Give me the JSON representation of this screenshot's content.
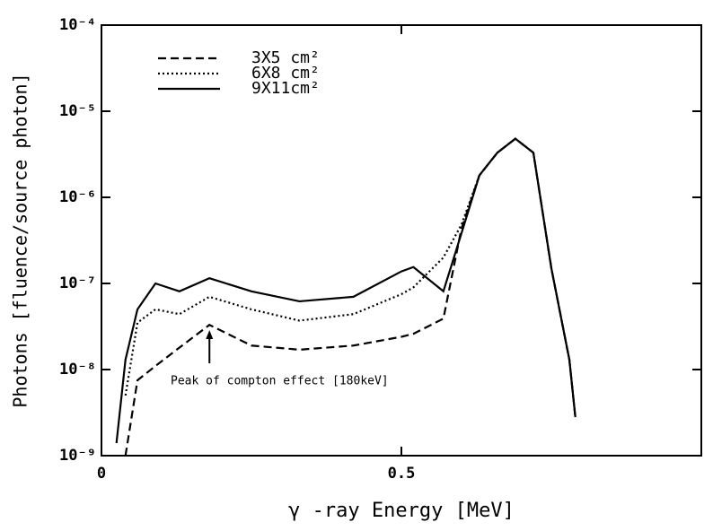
{
  "chart_data": {
    "type": "line",
    "ylabel": "Photons [fluence/source photon]",
    "xlabel": "γ -ray Energy [MeV]",
    "annotation": "Peak of compton effect [180keV]",
    "annotation_x": 0.18,
    "log_y": true,
    "legend": "upper left",
    "xlim": [
      0,
      1
    ],
    "xticks": [
      0,
      0.5
    ],
    "ylim": [
      1e-09,
      0.0001
    ],
    "yticks": [
      {
        "value": 1e-09,
        "label": "10⁻⁹"
      },
      {
        "value": 1e-08,
        "label": "10⁻⁸"
      },
      {
        "value": 1e-07,
        "label": "10⁻⁷"
      },
      {
        "value": 1e-06,
        "label": "10⁻⁶"
      },
      {
        "value": 1e-05,
        "label": "10⁻⁵"
      },
      {
        "value": 0.0001,
        "label": "10⁻⁴"
      }
    ],
    "x": [
      0.025,
      0.04,
      0.06,
      0.09,
      0.13,
      0.18,
      0.25,
      0.33,
      0.42,
      0.5,
      0.52,
      0.57,
      0.6,
      0.63,
      0.66,
      0.69,
      0.72,
      0.75,
      0.78,
      0.79
    ],
    "series": [
      {
        "name": "3X5 cm²",
        "color": "#000000",
        "dash": "9 5",
        "values": [
          null,
          1e-09,
          7.5e-09,
          1.1e-08,
          1.8e-08,
          3.3e-08,
          1.9e-08,
          1.7e-08,
          1.9e-08,
          2.4e-08,
          2.6e-08,
          3.9e-08,
          4.3e-07,
          1.8e-06,
          3.3e-06,
          4.8e-06,
          3.3e-06,
          1.5e-07,
          1.3e-08,
          2.8e-09
        ]
      },
      {
        "name": "6X8 cm²",
        "color": "#000000",
        "dash": "2 3",
        "values": [
          null,
          5e-09,
          3.5e-08,
          5e-08,
          4.4e-08,
          7e-08,
          5e-08,
          3.7e-08,
          4.4e-08,
          7.5e-08,
          9e-08,
          2e-07,
          4.8e-07,
          1.8e-06,
          3.3e-06,
          4.8e-06,
          3.3e-06,
          1.5e-07,
          1.3e-08,
          2.8e-09
        ]
      },
      {
        "name": "9X11cm²",
        "color": "#000000",
        "dash": "none",
        "values": [
          1.4e-09,
          1.3e-08,
          5e-08,
          1e-07,
          8.1e-08,
          1.15e-07,
          8.1e-08,
          6.2e-08,
          7e-08,
          1.38e-07,
          1.55e-07,
          8.1e-08,
          3.8e-07,
          1.8e-06,
          3.3e-06,
          4.8e-06,
          3.3e-06,
          1.5e-07,
          1.3e-08,
          2.8e-09
        ]
      }
    ]
  }
}
